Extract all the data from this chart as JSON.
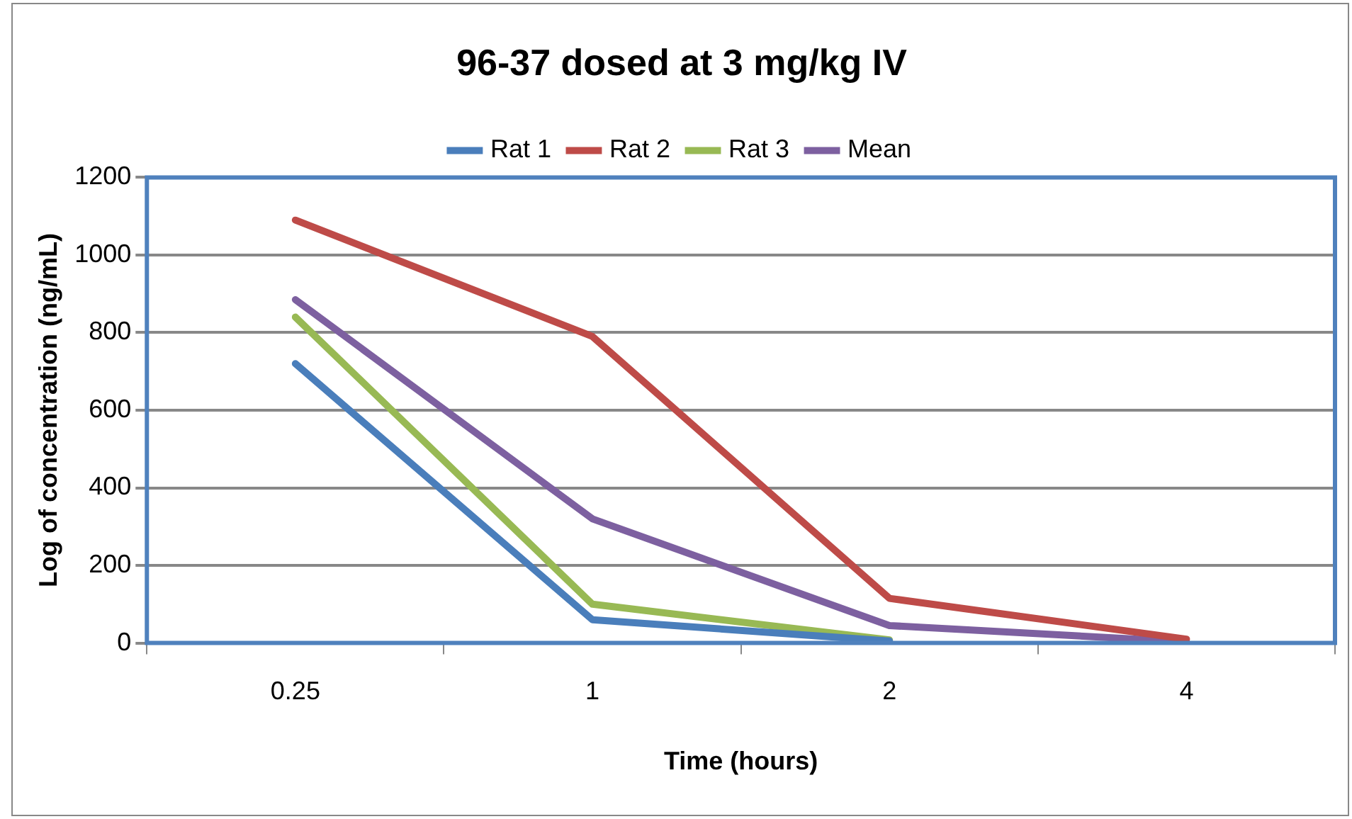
{
  "chart_data": {
    "type": "line",
    "title": "96-37 dosed at 3 mg/kg IV",
    "xlabel": "Time (hours)",
    "ylabel": "Log of concentration (ng/mL)",
    "categories": [
      "0.25",
      "1",
      "2",
      "4"
    ],
    "series": [
      {
        "name": "Rat 1",
        "color": "#4a7ebb",
        "values": [
          720,
          60,
          5,
          null
        ]
      },
      {
        "name": "Rat 2",
        "color": "#be4b48",
        "values": [
          1090,
          790,
          115,
          10
        ]
      },
      {
        "name": "Rat 3",
        "color": "#98b954",
        "values": [
          840,
          100,
          8,
          null
        ]
      },
      {
        "name": "Mean",
        "color": "#7d60a0",
        "values": [
          885,
          320,
          45,
          3
        ]
      }
    ],
    "ylim": [
      0,
      1200
    ],
    "yticks": [
      0,
      200,
      400,
      600,
      800,
      1000,
      1200
    ],
    "grid": "y",
    "legend": "top",
    "marker": "none",
    "line_style": "solid"
  }
}
